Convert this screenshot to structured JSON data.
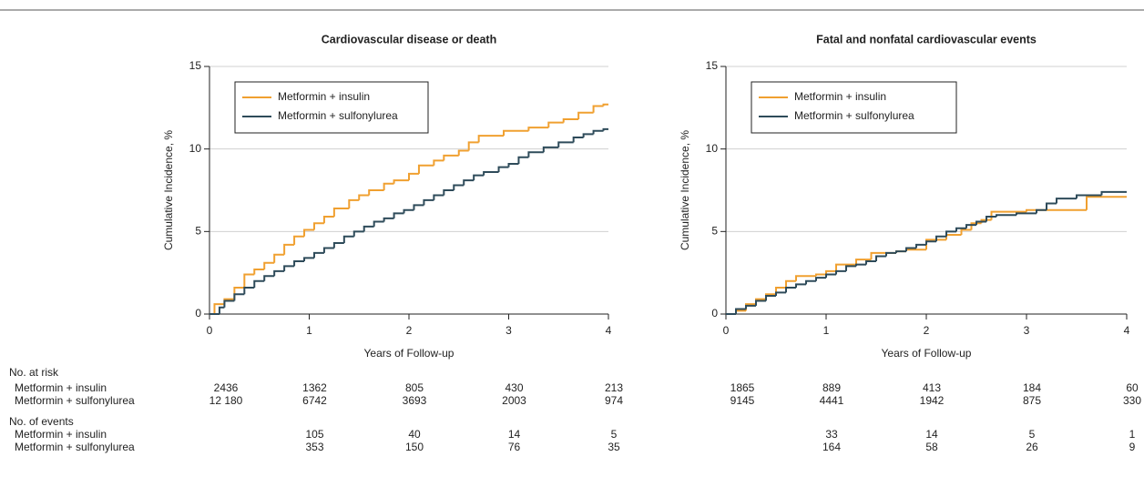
{
  "chart_data": [
    {
      "type": "step",
      "title": "Cardiovascular disease or death",
      "xlabel": "Years of Follow-up",
      "ylabel": "Cumulative Incidence, %",
      "xlim": [
        0,
        4
      ],
      "ylim": [
        0,
        15
      ],
      "xticks": [
        0,
        1,
        2,
        3,
        4
      ],
      "yticks": [
        0,
        5,
        10,
        15
      ],
      "grid": true,
      "legend": "upper left",
      "series": [
        {
          "name": "Metformin + insulin",
          "color": "#f0a030",
          "x": [
            0,
            0.05,
            0.15,
            0.25,
            0.35,
            0.45,
            0.55,
            0.65,
            0.75,
            0.85,
            0.95,
            1.05,
            1.15,
            1.25,
            1.4,
            1.5,
            1.6,
            1.75,
            1.85,
            2.0,
            2.1,
            2.25,
            2.35,
            2.5,
            2.6,
            2.7,
            2.95,
            3.2,
            3.4,
            3.55,
            3.7,
            3.85,
            3.95,
            4.0
          ],
          "values": [
            0,
            0.6,
            0.9,
            1.6,
            2.4,
            2.7,
            3.1,
            3.6,
            4.2,
            4.7,
            5.1,
            5.5,
            5.9,
            6.4,
            6.9,
            7.2,
            7.5,
            7.9,
            8.1,
            8.5,
            9.0,
            9.3,
            9.6,
            9.9,
            10.4,
            10.8,
            11.1,
            11.3,
            11.6,
            11.8,
            12.2,
            12.6,
            12.7,
            12.7
          ]
        },
        {
          "name": "Metformin + sulfonylurea",
          "color": "#2e4b5a",
          "x": [
            0,
            0.1,
            0.15,
            0.25,
            0.35,
            0.45,
            0.55,
            0.65,
            0.75,
            0.85,
            0.95,
            1.05,
            1.15,
            1.25,
            1.35,
            1.45,
            1.55,
            1.65,
            1.75,
            1.85,
            1.95,
            2.05,
            2.15,
            2.25,
            2.35,
            2.45,
            2.55,
            2.65,
            2.75,
            2.9,
            3.0,
            3.1,
            3.2,
            3.35,
            3.5,
            3.65,
            3.75,
            3.85,
            3.95,
            4.0
          ],
          "values": [
            0,
            0.4,
            0.8,
            1.2,
            1.6,
            2.0,
            2.3,
            2.6,
            2.9,
            3.2,
            3.4,
            3.7,
            4.0,
            4.3,
            4.7,
            5.0,
            5.3,
            5.6,
            5.8,
            6.1,
            6.3,
            6.6,
            6.9,
            7.2,
            7.5,
            7.8,
            8.1,
            8.4,
            8.6,
            8.9,
            9.1,
            9.5,
            9.8,
            10.1,
            10.4,
            10.7,
            10.9,
            11.1,
            11.2,
            11.2
          ]
        }
      ],
      "at_risk": [
        [
          "2436",
          "1362",
          "805",
          "430",
          "213"
        ],
        [
          "12 180",
          "6742",
          "3693",
          "2003",
          "974"
        ]
      ],
      "events": [
        [
          "105",
          "40",
          "14",
          "5"
        ],
        [
          "353",
          "150",
          "76",
          "35"
        ]
      ]
    },
    {
      "type": "step",
      "title": "Fatal and nonfatal cardiovascular events",
      "xlabel": "Years of Follow-up",
      "ylabel": "Cumulative Incidence, %",
      "xlim": [
        0,
        4
      ],
      "ylim": [
        0,
        15
      ],
      "xticks": [
        0,
        1,
        2,
        3,
        4
      ],
      "yticks": [
        0,
        5,
        10,
        15
      ],
      "grid": true,
      "legend": "upper left",
      "series": [
        {
          "name": "Metformin + insulin",
          "color": "#f0a030",
          "x": [
            0,
            0.1,
            0.2,
            0.3,
            0.4,
            0.5,
            0.6,
            0.7,
            0.9,
            1.0,
            1.1,
            1.3,
            1.45,
            1.6,
            1.7,
            1.8,
            2.0,
            2.1,
            2.2,
            2.35,
            2.45,
            2.55,
            2.65,
            3.0,
            3.6,
            4.0
          ],
          "values": [
            0,
            0.2,
            0.6,
            0.9,
            1.2,
            1.6,
            2.0,
            2.3,
            2.4,
            2.6,
            3.0,
            3.3,
            3.7,
            3.7,
            3.8,
            3.9,
            4.5,
            4.5,
            4.8,
            5.1,
            5.5,
            5.7,
            6.2,
            6.3,
            7.1,
            7.1
          ]
        },
        {
          "name": "Metformin + sulfonylurea",
          "color": "#2e4b5a",
          "x": [
            0,
            0.1,
            0.2,
            0.3,
            0.4,
            0.5,
            0.6,
            0.7,
            0.8,
            0.9,
            1.0,
            1.1,
            1.2,
            1.3,
            1.4,
            1.5,
            1.6,
            1.7,
            1.8,
            1.9,
            2.0,
            2.1,
            2.2,
            2.3,
            2.4,
            2.5,
            2.6,
            2.7,
            2.9,
            3.1,
            3.2,
            3.3,
            3.5,
            3.75,
            4.0
          ],
          "values": [
            0,
            0.3,
            0.5,
            0.8,
            1.1,
            1.3,
            1.6,
            1.8,
            2.0,
            2.2,
            2.4,
            2.6,
            2.9,
            3.0,
            3.2,
            3.5,
            3.7,
            3.8,
            4.0,
            4.2,
            4.4,
            4.7,
            5.0,
            5.2,
            5.4,
            5.6,
            5.9,
            6.0,
            6.1,
            6.3,
            6.7,
            7.0,
            7.2,
            7.4,
            7.4
          ]
        }
      ],
      "at_risk": [
        [
          "1865",
          "889",
          "413",
          "184",
          "60"
        ],
        [
          "9145",
          "4441",
          "1942",
          "875",
          "330"
        ]
      ],
      "events": [
        [
          "33",
          "14",
          "5",
          "1"
        ],
        [
          "164",
          "58",
          "26",
          "9"
        ]
      ]
    }
  ],
  "table": {
    "at_risk_label": "No. at risk",
    "events_label": "No. of events",
    "row_labels": [
      "Metformin + insulin",
      "Metformin + sulfonylurea"
    ]
  }
}
